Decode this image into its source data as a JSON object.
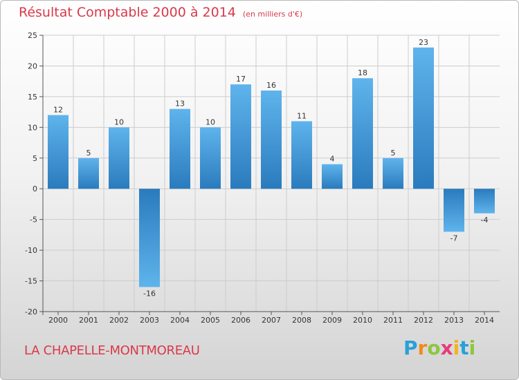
{
  "header": {
    "title": "Résultat Comptable 2000 à 2014",
    "subtitle": "(en milliers d'€)"
  },
  "footer": {
    "commune": "LA CHAPELLE-MONTMOREAU",
    "logo_letters": [
      "P",
      "r",
      "o",
      "x",
      "i",
      "t",
      "i"
    ]
  },
  "colors": {
    "title": "#d9394a",
    "bar_light": "#5fb4ec",
    "bar_dark": "#2a7bbd",
    "grid": "#cccccc"
  },
  "chart_data": {
    "type": "bar",
    "title": "Résultat Comptable 2000 à 2014",
    "subtitle": "(en milliers d'€)",
    "categories": [
      "2000",
      "2001",
      "2002",
      "2003",
      "2004",
      "2005",
      "2006",
      "2007",
      "2008",
      "2009",
      "2010",
      "2011",
      "2012",
      "2013",
      "2014"
    ],
    "values": [
      12,
      5,
      10,
      -16,
      13,
      10,
      17,
      16,
      11,
      4,
      18,
      5,
      23,
      -7,
      -4
    ],
    "data_labels": [
      "12",
      "5",
      "10",
      "-16",
      "13",
      "10",
      "17",
      "16",
      "11",
      "4",
      "18",
      "5",
      "23",
      "-7",
      "-4"
    ],
    "ylim": [
      -20,
      25
    ],
    "yticks": [
      -20,
      -15,
      -10,
      -5,
      0,
      5,
      10,
      15,
      20,
      25
    ],
    "ytick_labels": [
      "-20",
      "-15",
      "-10",
      "-5",
      "0",
      "5",
      "10",
      "15",
      "20",
      "25"
    ],
    "xlabel": "",
    "ylabel": "",
    "grid": true,
    "legend": "none"
  }
}
